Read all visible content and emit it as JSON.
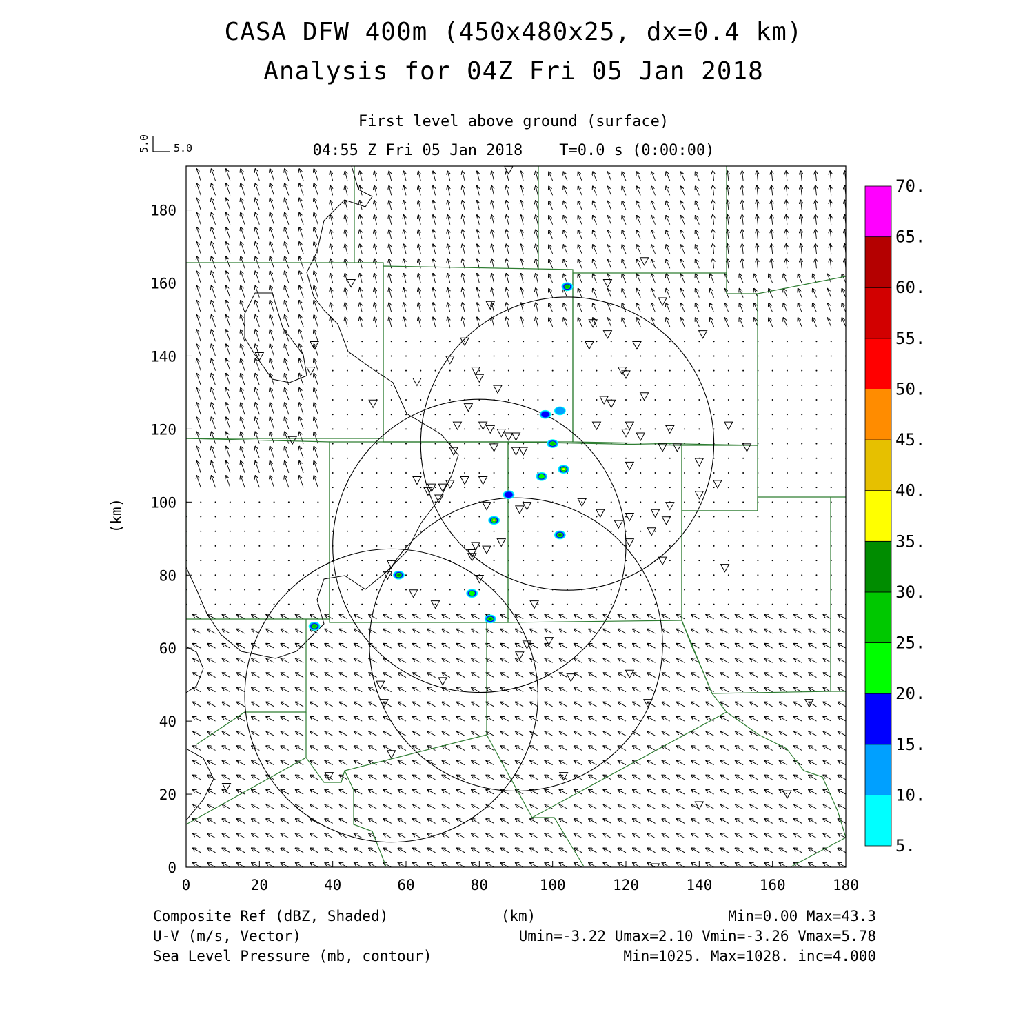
{
  "title": {
    "line1": "CASA DFW 400m (450x480x25, dx=0.4 km)",
    "line2": "Analysis for 04Z Fri 05 Jan 2018"
  },
  "subtitle": {
    "level": "First level above ground (surface)",
    "time": "04:55 Z Fri 05 Jan 2018    T=0.0 s (0:00:00)"
  },
  "vector_key": {
    "u": "5.0",
    "v": "5.0"
  },
  "axes": {
    "x_unit": "(km)",
    "y_unit": "(km)",
    "x_ticks": [
      "0",
      "20",
      "40",
      "60",
      "80",
      "100",
      "120",
      "140",
      "160",
      "180"
    ],
    "y_ticks": [
      "0",
      "20",
      "40",
      "60",
      "80",
      "100",
      "120",
      "140",
      "160",
      "180"
    ],
    "xlim": [
      0,
      180
    ],
    "ylim": [
      0,
      192
    ]
  },
  "colorbar": {
    "labels": [
      "5.",
      "10.",
      "15.",
      "20.",
      "25.",
      "30.",
      "35.",
      "40.",
      "45.",
      "50.",
      "55.",
      "60.",
      "65.",
      "70."
    ],
    "colors": [
      "#00ffff",
      "#00a0ff",
      "#0000ff",
      "#00ff00",
      "#00c800",
      "#008c00",
      "#ffff00",
      "#e6c000",
      "#ff8c00",
      "#ff0000",
      "#d20000",
      "#b40000",
      "#ff00ff"
    ]
  },
  "footer": {
    "field1": "Composite Ref (dBZ, Shaded)",
    "field1_stats": "Min=0.00 Max=43.3",
    "field2": "U-V (m/s, Vector)",
    "field2_stats": "Umin=-3.22 Umax=2.10 Vmin=-3.26 Vmax=5.78",
    "field3": "Sea Level Pressure (mb, contour)",
    "field3_stats": "Min=1025. Max=1028. inc=4.000",
    "center_unit": "(km)"
  },
  "map_data": {
    "radar_rings": [
      {
        "cx": 104,
        "cy": 116,
        "r": 40
      },
      {
        "cx": 80,
        "cy": 88,
        "r": 40
      },
      {
        "cx": 90,
        "cy": 61,
        "r": 40
      },
      {
        "cx": 56,
        "cy": 47,
        "r": 40
      }
    ],
    "echoes": [
      {
        "x": 104,
        "y": 159,
        "dbz": 25
      },
      {
        "x": 98,
        "y": 124,
        "dbz": 15
      },
      {
        "x": 102,
        "y": 125,
        "dbz": 10
      },
      {
        "x": 100,
        "y": 116,
        "dbz": 25
      },
      {
        "x": 103,
        "y": 109,
        "dbz": 35
      },
      {
        "x": 97,
        "y": 107,
        "dbz": 20
      },
      {
        "x": 88,
        "y": 102,
        "dbz": 15
      },
      {
        "x": 84,
        "y": 95,
        "dbz": 40
      },
      {
        "x": 102,
        "y": 91,
        "dbz": 30
      },
      {
        "x": 58,
        "y": 80,
        "dbz": 30
      },
      {
        "x": 78,
        "y": 75,
        "dbz": 20
      },
      {
        "x": 83,
        "y": 68,
        "dbz": 30
      },
      {
        "x": 35,
        "y": 66,
        "dbz": 25
      }
    ],
    "stations": [
      [
        88,
        191
      ],
      [
        125,
        166
      ],
      [
        45,
        160
      ],
      [
        115,
        160
      ],
      [
        83,
        154
      ],
      [
        130,
        155
      ],
      [
        111,
        149
      ],
      [
        115,
        146
      ],
      [
        141,
        146
      ],
      [
        76,
        144
      ],
      [
        110,
        143
      ],
      [
        123,
        143
      ],
      [
        35,
        143
      ],
      [
        20,
        140
      ],
      [
        72,
        139
      ],
      [
        34,
        136
      ],
      [
        79,
        136
      ],
      [
        80,
        134
      ],
      [
        119,
        136
      ],
      [
        120,
        135
      ],
      [
        85,
        131
      ],
      [
        63,
        133
      ],
      [
        125,
        129
      ],
      [
        114,
        128
      ],
      [
        116,
        127
      ],
      [
        77,
        126
      ],
      [
        51,
        127
      ],
      [
        112,
        121
      ],
      [
        121,
        121
      ],
      [
        120,
        119
      ],
      [
        74,
        121
      ],
      [
        81,
        121
      ],
      [
        83,
        120
      ],
      [
        86,
        119
      ],
      [
        88,
        118
      ],
      [
        90,
        118
      ],
      [
        132,
        120
      ],
      [
        148,
        121
      ],
      [
        124,
        118
      ],
      [
        29,
        117
      ],
      [
        84,
        115
      ],
      [
        90,
        114
      ],
      [
        92,
        114
      ],
      [
        73,
        114
      ],
      [
        130,
        115
      ],
      [
        134,
        115
      ],
      [
        153,
        115
      ],
      [
        140,
        111
      ],
      [
        121,
        110
      ],
      [
        63,
        106
      ],
      [
        76,
        106
      ],
      [
        81,
        106
      ],
      [
        72,
        105
      ],
      [
        67,
        104
      ],
      [
        70,
        104
      ],
      [
        66,
        103
      ],
      [
        69,
        101
      ],
      [
        140,
        102
      ],
      [
        145,
        105
      ],
      [
        108,
        100
      ],
      [
        82,
        99
      ],
      [
        93,
        99
      ],
      [
        91,
        98
      ],
      [
        113,
        97
      ],
      [
        121,
        96
      ],
      [
        128,
        97
      ],
      [
        132,
        99
      ],
      [
        118,
        94
      ],
      [
        131,
        95
      ],
      [
        127,
        92
      ],
      [
        79,
        88
      ],
      [
        82,
        87
      ],
      [
        78,
        86
      ],
      [
        86,
        89
      ],
      [
        78,
        85
      ],
      [
        121,
        89
      ],
      [
        130,
        84
      ],
      [
        56,
        83
      ],
      [
        55,
        80
      ],
      [
        147,
        82
      ],
      [
        80,
        79
      ],
      [
        62,
        75
      ],
      [
        68,
        72
      ],
      [
        95,
        72
      ],
      [
        99,
        62
      ],
      [
        93,
        61
      ],
      [
        91,
        58
      ],
      [
        121,
        53
      ],
      [
        105,
        52
      ],
      [
        70,
        51
      ],
      [
        53,
        50
      ],
      [
        54,
        45
      ],
      [
        126,
        45
      ],
      [
        170,
        45
      ],
      [
        56,
        31
      ],
      [
        39,
        25
      ],
      [
        103,
        25
      ],
      [
        11,
        22
      ],
      [
        164,
        20
      ],
      [
        140,
        17
      ],
      [
        128,
        0
      ]
    ],
    "counties": [
      [
        [
          270,
          381
        ],
        [
          556,
          381
        ],
        [
          556,
          636
        ],
        [
          270,
          636
        ]
      ],
      [
        [
          556,
          386
        ],
        [
          831,
          391
        ],
        [
          831,
          641
        ],
        [
          556,
          641
        ]
      ],
      [
        [
          831,
          396
        ],
        [
          1054,
          396
        ],
        [
          1054,
          426
        ],
        [
          1099,
          426
        ],
        [
          1099,
          646
        ],
        [
          831,
          641
        ]
      ],
      [
        [
          270,
          636
        ],
        [
          478,
          641
        ],
        [
          478,
          898
        ],
        [
          270,
          898
        ]
      ],
      [
        [
          478,
          641
        ],
        [
          737,
          641
        ],
        [
          737,
          903
        ],
        [
          478,
          903
        ]
      ],
      [
        [
          737,
          641
        ],
        [
          989,
          646
        ],
        [
          989,
          900
        ],
        [
          737,
          903
        ]
      ],
      [
        [
          989,
          646
        ],
        [
          1099,
          646
        ],
        [
          1099,
          741
        ],
        [
          989,
          741
        ]
      ],
      [
        [
          989,
          741
        ],
        [
          1099,
          741
        ],
        [
          1099,
          721
        ],
        [
          1205,
          721
        ],
        [
          1205,
          1003
        ],
        [
          1033,
          1006
        ],
        [
          989,
          900
        ]
      ]
    ],
    "lines": [
      [
        [
          514,
          241
        ],
        [
          514,
          381
        ]
      ],
      [
        [
          781,
          241
        ],
        [
          781,
          391
        ]
      ],
      [
        [
          1054,
          241
        ],
        [
          1054,
          396
        ]
      ],
      [
        [
          1099,
          426
        ],
        [
          1227,
          401
        ]
      ],
      [
        [
          1205,
          721
        ],
        [
          1227,
          721
        ]
      ],
      [
        [
          1205,
          1003
        ],
        [
          1227,
          1003
        ]
      ],
      [
        [
          706,
          903
        ],
        [
          706,
          1066
        ]
      ],
      [
        [
          444,
          898
        ],
        [
          444,
          1033
        ],
        [
          355,
          1033
        ],
        [
          285,
          1080
        ]
      ],
      [
        [
          444,
          1033
        ],
        [
          444,
          1099
        ],
        [
          270,
          1196
        ]
      ],
      [
        [
          444,
          1099
        ],
        [
          470,
          1135
        ],
        [
          495,
          1135
        ],
        [
          500,
          1118
        ],
        [
          706,
          1066
        ]
      ],
      [
        [
          706,
          1066
        ],
        [
          772,
          1186
        ],
        [
          1054,
          1033
        ]
      ],
      [
        [
          1033,
          1006
        ],
        [
          1054,
          1033
        ],
        [
          1101,
          1066
        ],
        [
          1141,
          1086
        ],
        [
          1166,
          1118
        ],
        [
          1193,
          1127
        ],
        [
          1215,
          1176
        ],
        [
          1227,
          1215
        ]
      ],
      [
        [
          1148,
          1257
        ],
        [
          1227,
          1215
        ]
      ],
      [
        [
          772,
          1186
        ],
        [
          804,
          1186
        ],
        [
          847,
          1257
        ]
      ],
      [
        [
          500,
          1118
        ],
        [
          513,
          1146
        ],
        [
          513,
          1196
        ],
        [
          540,
          1206
        ],
        [
          560,
          1257
        ]
      ],
      [
        [
          989,
          900
        ],
        [
          1003,
          936
        ],
        [
          1018,
          970
        ],
        [
          1033,
          1006
        ]
      ]
    ],
    "pressure_contours": [
      [
        [
          510,
          241
        ],
        [
          520,
          275
        ],
        [
          540,
          285
        ],
        [
          530,
          300
        ],
        [
          500,
          290
        ],
        [
          470,
          320
        ],
        [
          460,
          365
        ],
        [
          445,
          395
        ],
        [
          455,
          430
        ],
        [
          470,
          450
        ],
        [
          490,
          470
        ],
        [
          505,
          510
        ],
        [
          540,
          535
        ],
        [
          570,
          555
        ],
        [
          590,
          600
        ],
        [
          640,
          630
        ],
        [
          665,
          660
        ],
        [
          655,
          690
        ],
        [
          640,
          720
        ],
        [
          610,
          760
        ],
        [
          590,
          800
        ],
        [
          560,
          830
        ],
        [
          530,
          855
        ],
        [
          500,
          835
        ],
        [
          470,
          840
        ],
        [
          460,
          870
        ],
        [
          470,
          905
        ],
        [
          450,
          925
        ],
        [
          430,
          945
        ],
        [
          400,
          955
        ],
        [
          350,
          945
        ],
        [
          320,
          920
        ],
        [
          300,
          890
        ],
        [
          285,
          855
        ],
        [
          270,
          823
        ]
      ],
      [
        [
          355,
          455
        ],
        [
          370,
          425
        ],
        [
          395,
          425
        ],
        [
          410,
          475
        ],
        [
          440,
          515
        ],
        [
          445,
          545
        ],
        [
          420,
          555
        ],
        [
          395,
          550
        ],
        [
          370,
          515
        ],
        [
          355,
          490
        ],
        [
          355,
          455
        ]
      ],
      [
        [
          270,
          938
        ],
        [
          285,
          946
        ],
        [
          295,
          970
        ],
        [
          285,
          995
        ],
        [
          270,
          1005
        ]
      ],
      [
        [
          270,
          1086
        ],
        [
          295,
          1100
        ],
        [
          310,
          1130
        ],
        [
          295,
          1160
        ],
        [
          270,
          1190
        ]
      ]
    ]
  }
}
